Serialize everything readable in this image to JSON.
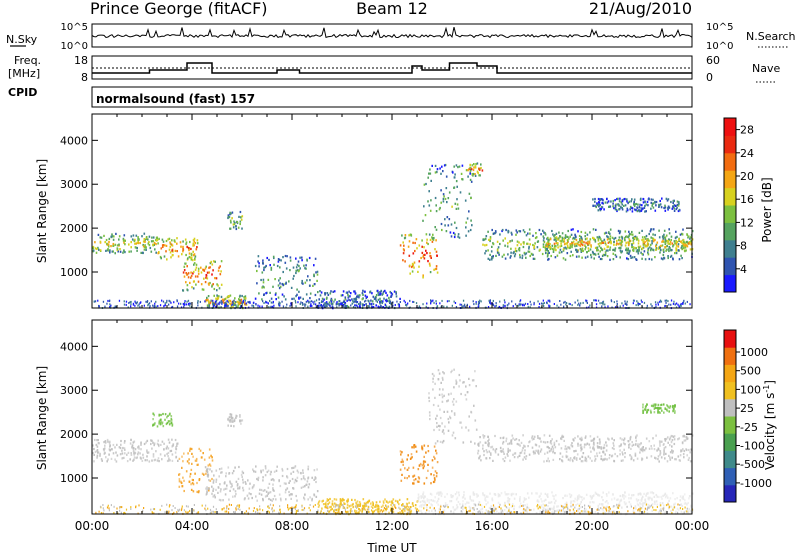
{
  "header": {
    "station": "Prince George (fitACF)",
    "beam": "Beam 12",
    "date": "21/Aug/2010"
  },
  "top_panels": {
    "nsky_label": "N.Sky",
    "nsky_ticks": [
      "10^5",
      "10^0"
    ],
    "nsearch_label": "N.Search",
    "nsearch_ticks": [
      "10^5",
      "10^0"
    ],
    "freq_label_1": "Freq.",
    "freq_label_2": "[MHz]",
    "freq_ticks": [
      "18",
      "8"
    ],
    "nave_label": "Nave",
    "nave_ticks": [
      "60",
      "0"
    ],
    "cpid_label": "CPID",
    "cpid_text": "normalsound (fast) 157"
  },
  "chart_data": [
    {
      "type": "heatmap",
      "name": "power",
      "xlabel": "",
      "ylabel": "Slant Range [km]",
      "xlim": [
        0,
        24
      ],
      "ylim": [
        180,
        4600
      ],
      "yticks": [
        "1000",
        "2000",
        "3000",
        "4000"
      ],
      "colorbar": {
        "label": "Power [dB]",
        "ticks": [
          "4",
          "8",
          "12",
          "16",
          "20",
          "24",
          "28"
        ],
        "range": [
          0,
          30
        ],
        "colors": [
          "#1a1aff",
          "#2f54b0",
          "#3f7f8f",
          "#55a35f",
          "#7cc040",
          "#d7d11f",
          "#f4a614",
          "#f26c10",
          "#ea2a10",
          "#ee1010"
        ]
      },
      "blobs": [
        {
          "t0": 0.0,
          "t1": 2.6,
          "r0": 1450,
          "r1": 1900,
          "level": 0.55
        },
        {
          "t0": 2.6,
          "t1": 4.2,
          "r0": 1300,
          "r1": 1800,
          "level": 0.75
        },
        {
          "t0": 3.6,
          "t1": 5.2,
          "r0": 600,
          "r1": 1300,
          "level": 0.8
        },
        {
          "t0": 4.5,
          "t1": 6.2,
          "r0": 200,
          "r1": 500,
          "level": 0.7
        },
        {
          "t0": 5.4,
          "t1": 6.0,
          "r0": 2000,
          "r1": 2400,
          "level": 0.45
        },
        {
          "t0": 6.5,
          "t1": 9.0,
          "r0": 400,
          "r1": 1400,
          "level": 0.35
        },
        {
          "t0": 9.0,
          "t1": 12.3,
          "r0": 200,
          "r1": 600,
          "level": 0.25
        },
        {
          "t0": 12.3,
          "t1": 13.8,
          "r0": 900,
          "r1": 1900,
          "level": 0.85
        },
        {
          "t0": 13.2,
          "t1": 15.2,
          "r0": 1800,
          "r1": 3500,
          "level": 0.4
        },
        {
          "t0": 15.0,
          "t1": 15.6,
          "r0": 3200,
          "r1": 3500,
          "level": 0.7
        },
        {
          "t0": 15.6,
          "t1": 24.0,
          "r0": 1300,
          "r1": 2000,
          "level": 0.45
        },
        {
          "t0": 18.0,
          "t1": 24.0,
          "r0": 1500,
          "r1": 1850,
          "level": 0.62
        },
        {
          "t0": 20.0,
          "t1": 23.5,
          "r0": 2400,
          "r1": 2700,
          "level": 0.25
        }
      ]
    },
    {
      "type": "heatmap",
      "name": "velocity",
      "xlabel": "Time UT",
      "ylabel": "Slant Range [km]",
      "xlim": [
        0,
        24
      ],
      "ylim": [
        180,
        4600
      ],
      "xticks": [
        "00:00",
        "04:00",
        "08:00",
        "12:00",
        "16:00",
        "20:00",
        "00:00"
      ],
      "yticks": [
        "1000",
        "2000",
        "3000",
        "4000"
      ],
      "colorbar": {
        "label": "Velocity [m s^-1]",
        "ticks": [
          "1000",
          "500",
          "100",
          "25",
          "-25",
          "-100",
          "-500",
          "-1000"
        ],
        "colors": [
          "#2626b8",
          "#2f5fb5",
          "#3f8a8a",
          "#4aa050",
          "#7cc040",
          "#bfbfbf",
          "#f0c020",
          "#f4a614",
          "#f07010",
          "#e81010"
        ]
      },
      "blobs": [
        {
          "t0": 0.0,
          "t1": 3.4,
          "r0": 1400,
          "r1": 1900,
          "color": "#c0c0c0"
        },
        {
          "t0": 2.4,
          "t1": 3.2,
          "r0": 2200,
          "r1": 2500,
          "color": "#70c040"
        },
        {
          "t0": 3.4,
          "t1": 4.8,
          "r0": 700,
          "r1": 1700,
          "color": "#f4a020"
        },
        {
          "t0": 5.4,
          "t1": 6.0,
          "r0": 2200,
          "r1": 2500,
          "color": "#c0c0c0"
        },
        {
          "t0": 4.5,
          "t1": 9.0,
          "r0": 500,
          "r1": 1300,
          "color": "#c0c0c0"
        },
        {
          "t0": 9.0,
          "t1": 13.0,
          "r0": 200,
          "r1": 550,
          "color": "#f0c020"
        },
        {
          "t0": 12.3,
          "t1": 13.8,
          "r0": 900,
          "r1": 1800,
          "color": "#f08a10"
        },
        {
          "t0": 13.4,
          "t1": 15.4,
          "r0": 1800,
          "r1": 3500,
          "color": "#c0c0c0"
        },
        {
          "t0": 15.4,
          "t1": 24.0,
          "r0": 1400,
          "r1": 2000,
          "color": "#c0c0c0"
        },
        {
          "t0": 22.0,
          "t1": 23.3,
          "r0": 2500,
          "r1": 2700,
          "color": "#70c040"
        },
        {
          "t0": 13.0,
          "t1": 24.0,
          "r0": 200,
          "r1": 700,
          "color": "#e8e8e8"
        }
      ]
    }
  ]
}
